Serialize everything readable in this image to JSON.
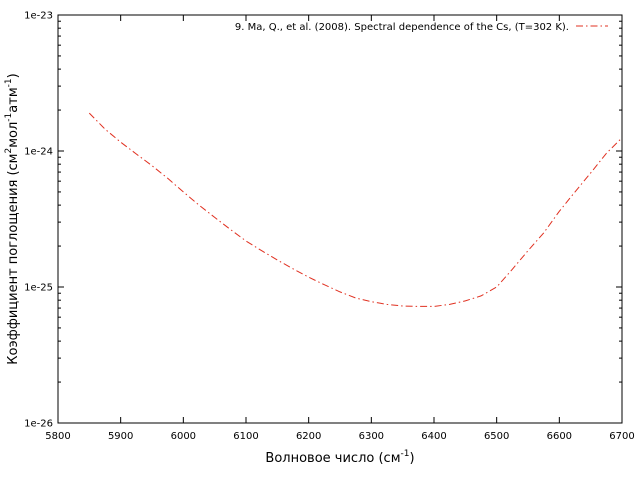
{
  "chart_data": {
    "type": "line",
    "xlabel": "Волновое число (см",
    "xlabel_sup": "-1",
    "xlabel_end": ")",
    "ylabel_parts": [
      "Коэффициент поглощения (см",
      "2",
      "мол",
      "-1",
      "атм",
      "-1",
      ")"
    ],
    "xlim": [
      5800,
      6700
    ],
    "ylim": [
      1e-26,
      1e-23
    ],
    "yscale": "log",
    "x_ticks": [
      5800,
      5900,
      6000,
      6100,
      6200,
      6300,
      6400,
      6500,
      6600,
      6700
    ],
    "y_ticks": [
      1e-26,
      1e-25,
      1e-24,
      1e-23
    ],
    "y_tick_labels": [
      "1e-26",
      "1e-25",
      "1e-24",
      "1e-23"
    ],
    "grid": false,
    "legend_position": "top-right",
    "series": [
      {
        "name": "9. Ma, Q., et al. (2008). Spectral dependence of the Cs,  (T=302 K).",
        "color": "#e03020",
        "line_style": "dash-dot",
        "x": [
          5850,
          5875,
          5900,
          5925,
          5950,
          5975,
          6000,
          6025,
          6050,
          6075,
          6100,
          6125,
          6150,
          6175,
          6200,
          6225,
          6250,
          6275,
          6300,
          6325,
          6350,
          6375,
          6400,
          6425,
          6450,
          6475,
          6500,
          6525,
          6550,
          6575,
          6600,
          6625,
          6650,
          6675,
          6700
        ],
        "y": [
          1.9e-24,
          1.45e-24,
          1.16e-24,
          9.5e-25,
          7.8e-25,
          6.3e-25,
          5e-25,
          4e-25,
          3.25e-25,
          2.65e-25,
          2.18e-25,
          1.85e-25,
          1.58e-25,
          1.36e-25,
          1.18e-25,
          1.04e-25,
          9.2e-26,
          8.3e-26,
          7.8e-26,
          7.45e-26,
          7.25e-26,
          7.2e-26,
          7.2e-26,
          7.45e-26,
          7.9e-26,
          8.6e-26,
          1e-25,
          1.35e-25,
          1.85e-25,
          2.5e-25,
          3.6e-25,
          5e-25,
          6.9e-25,
          9.6e-25,
          1.25e-24
        ]
      }
    ]
  }
}
